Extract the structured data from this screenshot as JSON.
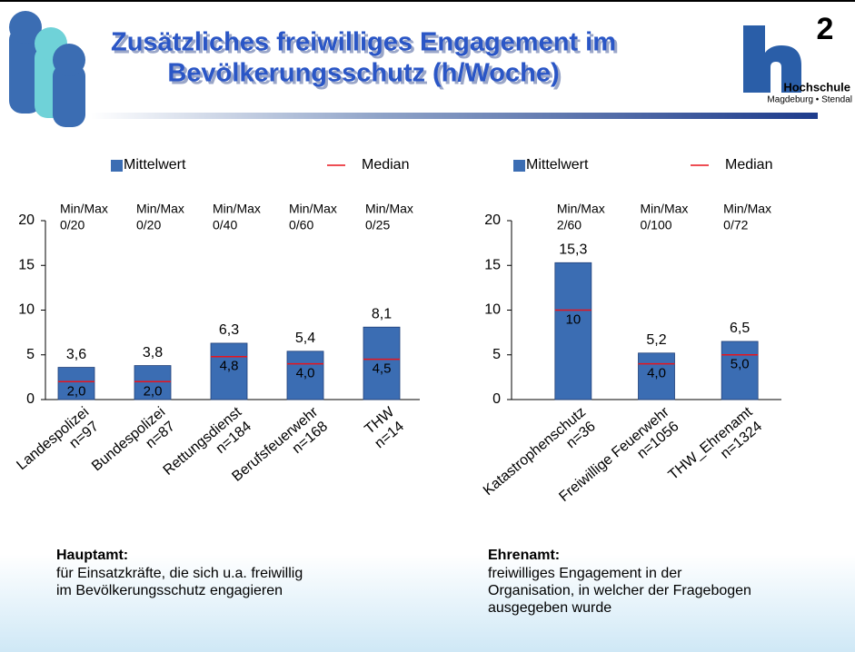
{
  "header": {
    "title_lines": [
      "Zusätzliches freiwilliges Engagement im",
      "Bevölkerungsschutz (h/Woche)"
    ],
    "logo": {
      "mark": "h",
      "superscript": "2",
      "name": "Hochschule",
      "place": "Magdeburg • Stendal"
    }
  },
  "chart_data": [
    {
      "type": "bar",
      "categories": [
        "Landespolizei",
        "Bundespolizei",
        "Rettungsdienst",
        "Berufsfeuerwehr",
        "THW"
      ],
      "n_labels": [
        "n=97",
        "n=87",
        "n=184",
        "n=168",
        "n=14"
      ],
      "annotations": [
        {
          "label": "Min/Max",
          "value": "0/20"
        },
        {
          "label": "Min/Max",
          "value": "0/20"
        },
        {
          "label": "Min/Max",
          "value": "0/40"
        },
        {
          "label": "Min/Max",
          "value": "0/60"
        },
        {
          "label": "Min/Max",
          "value": "0/25"
        }
      ],
      "series": [
        {
          "name": "Mittelwert",
          "color": "#3b6db3",
          "values": [
            3.6,
            3.8,
            6.3,
            5.4,
            8.1
          ],
          "value_labels": [
            "3,6",
            "3,8",
            "6,3",
            "5,4",
            "8,1"
          ]
        },
        {
          "name": "Median",
          "color": "#e8141c",
          "values": [
            2.0,
            2.0,
            4.8,
            4.0,
            4.5
          ],
          "value_labels": [
            "2,0",
            "2,0",
            "4,8",
            "4,0",
            "4,5"
          ]
        }
      ],
      "ylim": [
        0,
        20
      ],
      "yticks": [
        0,
        5,
        10,
        15,
        20
      ]
    },
    {
      "type": "bar",
      "categories": [
        "Katastrophenschutz",
        "Freiwillige Feuerwehr",
        "THW_Ehrenamt"
      ],
      "n_labels": [
        "n=36",
        "n=1056",
        "n=1324"
      ],
      "annotations": [
        {
          "label": "Min/Max",
          "value": "2/60"
        },
        {
          "label": "Min/Max",
          "value": "0/100"
        },
        {
          "label": "Min/Max",
          "value": "0/72"
        }
      ],
      "series": [
        {
          "name": "Mittelwert",
          "color": "#3b6db3",
          "values": [
            15.3,
            5.2,
            6.5
          ],
          "value_labels": [
            "15,3",
            "5,2",
            "6,5"
          ]
        },
        {
          "name": "Median",
          "color": "#e8141c",
          "values": [
            10,
            4.0,
            5.0
          ],
          "value_labels": [
            "10",
            "4,0",
            "5,0"
          ]
        }
      ],
      "ylim": [
        0,
        20
      ],
      "yticks": [
        0,
        5,
        10,
        15,
        20
      ]
    }
  ],
  "notes": [
    {
      "heading": "Hauptamt:",
      "lines": [
        "für Einsatzkräfte, die sich u.a. freiwillig",
        "im Bevölkerungsschutz engagieren"
      ]
    },
    {
      "heading": "Ehrenamt:",
      "lines": [
        "freiwilliges Engagement in der",
        "Organisation, in welcher der Fragebogen",
        "ausgegeben wurde"
      ]
    }
  ]
}
